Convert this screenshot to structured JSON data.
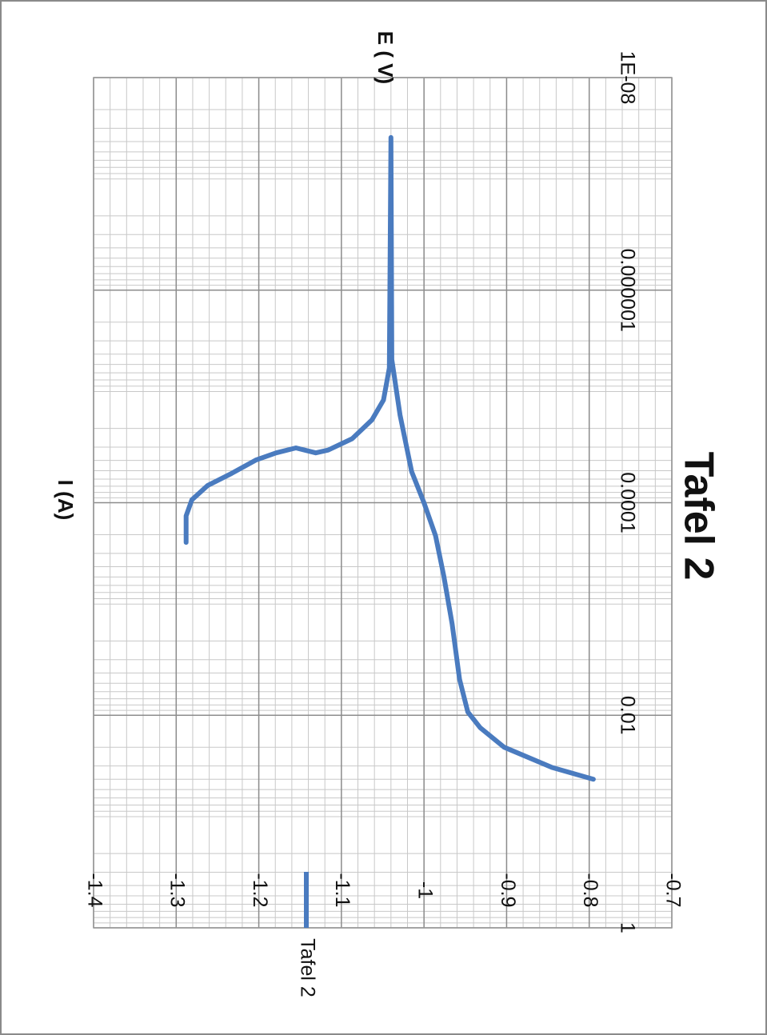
{
  "chart_data": {
    "type": "line",
    "title": "Tafel 2",
    "x_label": "I (A)",
    "y_label": "E ( V)",
    "xscale": "log",
    "xlim": [
      1e-08,
      1
    ],
    "xticks": [
      {
        "value": 1e-08,
        "label": "1E-08"
      },
      1e-06,
      0.0001,
      0.01,
      1
    ],
    "ylim": [
      -1.4,
      -0.7
    ],
    "yticks": [
      -1.4,
      -1.3,
      -1.2,
      -1.1,
      -1,
      -0.9,
      -0.8,
      -0.7
    ],
    "grid": true,
    "minor_grid": true,
    "legend": "bottom",
    "series": [
      {
        "name": "Tafel 2",
        "color": "#4a7bbf",
        "x": [
          0.000236,
          0.000133,
          9.4e-05,
          6.9e-05,
          5.3e-05,
          3.95e-05,
          3.4e-05,
          3.05e-05,
          3.4e-05,
          3.2e-05,
          2.5e-05,
          1.66e-05,
          1.08e-05,
          5.4e-06,
          3.66e-08,
          4.5e-06,
          1.5e-05,
          5.1e-05,
          0.0001,
          0.000205,
          0.00049,
          0.00138,
          0.0046,
          0.0093,
          0.0131,
          0.02,
          0.031,
          0.04
        ],
        "values": [
          -1.288,
          -1.288,
          -1.281,
          -1.262,
          -1.233,
          -1.203,
          -1.179,
          -1.155,
          -1.131,
          -1.116,
          -1.087,
          -1.063,
          -1.049,
          -1.042,
          -1.04,
          -1.039,
          -1.029,
          -1.015,
          -1.0,
          -0.986,
          -0.976,
          -0.966,
          -0.957,
          -0.947,
          -0.932,
          -0.903,
          -0.845,
          -0.795
        ]
      }
    ]
  }
}
